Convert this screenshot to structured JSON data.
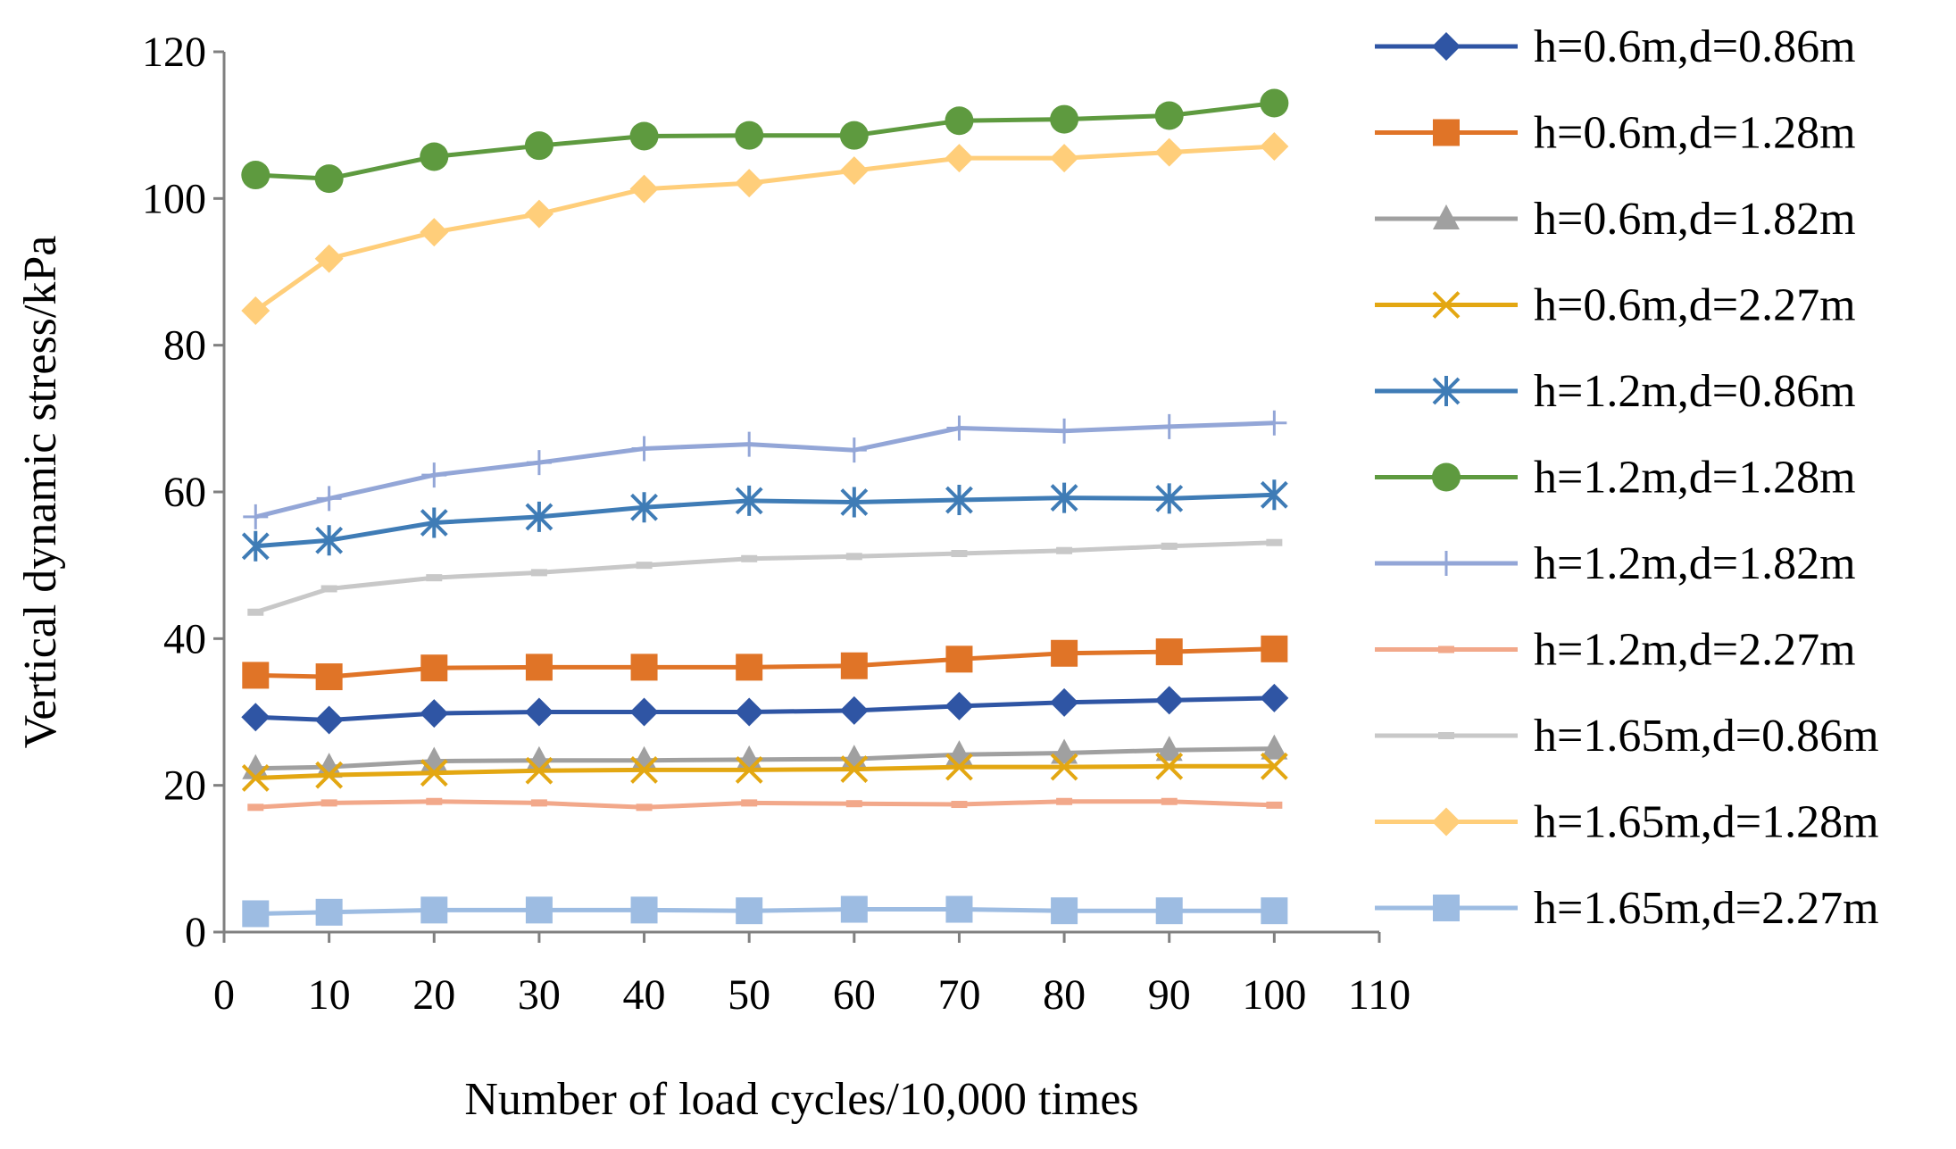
{
  "chart_data": {
    "type": "line",
    "title": "",
    "xlabel": "Number of load cycles/10,000 times",
    "ylabel": "Vertical dynamic stress/kPa",
    "xlim": [
      0,
      110
    ],
    "ylim": [
      0,
      120
    ],
    "xticks": [
      0,
      10,
      20,
      30,
      40,
      50,
      60,
      70,
      80,
      90,
      100,
      110
    ],
    "yticks": [
      0,
      20,
      40,
      60,
      80,
      100,
      120
    ],
    "xtick_labels": [
      "0",
      "10",
      "20",
      "30",
      "40",
      "50",
      "60",
      "70",
      "80",
      "90",
      "100",
      "110"
    ],
    "ytick_labels": [
      "0",
      "20",
      "40",
      "60",
      "80",
      "100",
      "120"
    ],
    "grid": false,
    "legend_position": "right",
    "x": [
      3,
      10,
      20,
      30,
      40,
      50,
      60,
      70,
      80,
      90,
      100
    ],
    "series": [
      {
        "name": "h=0.6m,d=0.86m",
        "color": "#2F55A4",
        "marker": "diamond",
        "values": [
          29.3,
          28.9,
          29.8,
          30.0,
          30.0,
          30.0,
          30.2,
          30.8,
          31.3,
          31.6,
          31.9
        ]
      },
      {
        "name": "h=0.6m,d=1.28m",
        "color": "#E07427",
        "marker": "square",
        "values": [
          35.0,
          34.8,
          36.0,
          36.1,
          36.1,
          36.1,
          36.3,
          37.2,
          38.0,
          38.2,
          38.6
        ]
      },
      {
        "name": "h=0.6m,d=1.82m",
        "color": "#A0A0A0",
        "marker": "triangle",
        "values": [
          22.3,
          22.5,
          23.3,
          23.4,
          23.4,
          23.5,
          23.6,
          24.2,
          24.4,
          24.8,
          25.0
        ]
      },
      {
        "name": "h=0.6m,d=2.27m",
        "color": "#E3A712",
        "marker": "x",
        "values": [
          21.0,
          21.4,
          21.7,
          22.0,
          22.1,
          22.1,
          22.2,
          22.5,
          22.5,
          22.6,
          22.6
        ]
      },
      {
        "name": "h=1.2m,d=0.86m",
        "color": "#3F7CB6",
        "marker": "star",
        "values": [
          52.6,
          53.4,
          55.8,
          56.6,
          57.9,
          58.8,
          58.6,
          58.9,
          59.2,
          59.1,
          59.6
        ]
      },
      {
        "name": "h=1.2m,d=1.28m",
        "color": "#5E9A3F",
        "marker": "circle",
        "values": [
          103.2,
          102.7,
          105.7,
          107.2,
          108.5,
          108.6,
          108.6,
          110.6,
          110.8,
          111.3,
          113.0
        ]
      },
      {
        "name": "h=1.2m,d=1.82m",
        "color": "#93A6D7",
        "marker": "plus",
        "values": [
          56.6,
          59.1,
          62.3,
          64.0,
          65.9,
          66.5,
          65.7,
          68.7,
          68.3,
          68.9,
          69.4
        ]
      },
      {
        "name": "h=1.2m,d=2.27m",
        "color": "#F2A88A",
        "marker": "dash",
        "values": [
          17.0,
          17.6,
          17.8,
          17.6,
          17.0,
          17.6,
          17.5,
          17.4,
          17.8,
          17.8,
          17.3
        ]
      },
      {
        "name": "h=1.65m,d=0.86m",
        "color": "#C8C8C8",
        "marker": "dash",
        "values": [
          43.6,
          46.8,
          48.3,
          49.0,
          50.0,
          50.9,
          51.2,
          51.6,
          52.0,
          52.6,
          53.1
        ]
      },
      {
        "name": "h=1.65m,d=1.28m",
        "color": "#FFCE7A",
        "marker": "diamond",
        "values": [
          84.7,
          91.8,
          95.4,
          97.9,
          101.3,
          102.1,
          103.8,
          105.5,
          105.5,
          106.3,
          107.1
        ]
      },
      {
        "name": "h=1.65m,d=2.27m",
        "color": "#9DBCE2",
        "marker": "square",
        "values": [
          2.5,
          2.7,
          3.0,
          3.0,
          3.0,
          2.9,
          3.1,
          3.1,
          2.9,
          2.9,
          2.9
        ]
      }
    ]
  }
}
